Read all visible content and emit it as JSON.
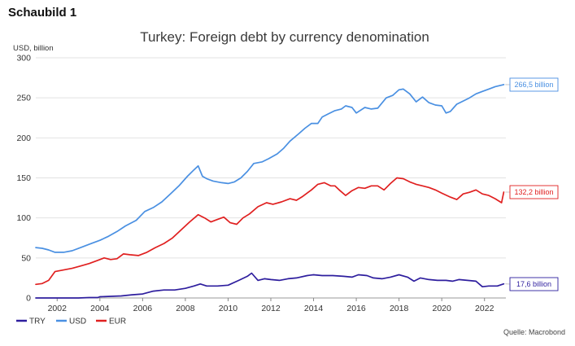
{
  "heading": "Schaubild 1",
  "source": "Quelle: Macrobond",
  "chart_data": {
    "type": "line",
    "title": "Turkey: Foreign debt by currency denomination",
    "ylabel": "USD, billion",
    "xlabel": "",
    "ylim": [
      0,
      300
    ],
    "xlim": [
      2001.0,
      2023.0
    ],
    "yticks": [
      "0",
      "50",
      "100",
      "150",
      "200",
      "250",
      "300"
    ],
    "xticks": [
      "2002",
      "2004",
      "2006",
      "2008",
      "2010",
      "2012",
      "2014",
      "2016",
      "2018",
      "2020",
      "2022"
    ],
    "grid": true,
    "legend": "bottom-left",
    "series": [
      {
        "name": "TRY",
        "color": "#2e1e9e",
        "end_label": "17,6 billion",
        "x": [
          2001.0,
          2001.5,
          2002.0,
          2002.5,
          2003.0,
          2003.5,
          2003.9,
          2004.0,
          2004.5,
          2005.0,
          2005.5,
          2006.0,
          2006.5,
          2007.0,
          2007.5,
          2008.0,
          2008.4,
          2008.7,
          2009.0,
          2009.5,
          2010.0,
          2010.5,
          2010.9,
          2011.1,
          2011.4,
          2011.7,
          2012.0,
          2012.4,
          2012.8,
          2013.2,
          2013.7,
          2014.0,
          2014.4,
          2014.9,
          2015.4,
          2015.8,
          2016.1,
          2016.5,
          2016.8,
          2017.2,
          2017.6,
          2018.0,
          2018.4,
          2018.7,
          2019.0,
          2019.4,
          2019.8,
          2020.2,
          2020.5,
          2020.8,
          2021.2,
          2021.6,
          2021.9,
          2022.2,
          2022.6,
          2022.9
        ],
        "values": [
          0,
          0,
          0,
          0,
          0,
          0.5,
          0.5,
          1.5,
          2,
          2.5,
          4,
          5,
          8.5,
          10,
          10,
          12,
          15,
          17.5,
          15,
          15,
          16,
          22,
          27,
          31,
          22,
          24,
          23,
          22,
          24,
          25,
          28,
          29,
          28,
          28,
          27,
          26,
          29,
          28,
          25,
          24,
          26,
          29,
          26,
          21,
          25,
          23,
          22,
          22,
          21,
          23,
          22,
          21,
          14,
          15,
          15,
          17.6
        ]
      },
      {
        "name": "USD",
        "color": "#4a90e2",
        "end_label": "266,5 billion",
        "x": [
          2001.0,
          2001.3,
          2001.6,
          2001.9,
          2002.3,
          2002.7,
          2003.1,
          2003.6,
          2004.0,
          2004.4,
          2004.8,
          2005.2,
          2005.7,
          2006.1,
          2006.5,
          2006.9,
          2007.3,
          2007.7,
          2008.1,
          2008.4,
          2008.6,
          2008.8,
          2009.0,
          2009.3,
          2009.7,
          2010.0,
          2010.3,
          2010.6,
          2010.9,
          2011.2,
          2011.6,
          2011.9,
          2012.3,
          2012.6,
          2012.9,
          2013.3,
          2013.6,
          2013.9,
          2014.2,
          2014.4,
          2014.7,
          2015.0,
          2015.3,
          2015.5,
          2015.8,
          2016.0,
          2016.4,
          2016.7,
          2017.0,
          2017.4,
          2017.7,
          2018.0,
          2018.2,
          2018.5,
          2018.8,
          2019.1,
          2019.4,
          2019.7,
          2020.0,
          2020.2,
          2020.4,
          2020.7,
          2021.0,
          2021.3,
          2021.6,
          2021.9,
          2022.2,
          2022.5,
          2022.9
        ],
        "values": [
          63,
          62,
          60,
          57,
          57,
          59,
          63,
          68,
          72,
          77,
          83,
          90,
          97,
          108,
          113,
          120,
          130,
          140,
          152,
          160,
          165,
          152,
          149,
          146,
          144,
          143,
          145,
          150,
          158,
          168,
          170,
          174,
          180,
          187,
          196,
          205,
          212,
          218,
          218,
          226,
          230,
          234,
          236,
          240,
          238,
          231,
          238,
          236,
          237,
          250,
          253,
          260,
          261,
          255,
          245,
          251,
          244,
          241,
          240,
          231,
          233,
          242,
          246,
          250,
          255,
          258,
          261,
          264,
          266.5
        ]
      },
      {
        "name": "EUR",
        "color": "#e02020",
        "end_label": "132,2 billion",
        "x": [
          2001.0,
          2001.3,
          2001.6,
          2001.9,
          2002.3,
          2002.7,
          2003.1,
          2003.5,
          2003.9,
          2004.2,
          2004.5,
          2004.8,
          2005.1,
          2005.4,
          2005.8,
          2006.2,
          2006.6,
          2007.0,
          2007.4,
          2007.8,
          2008.2,
          2008.6,
          2008.9,
          2009.2,
          2009.5,
          2009.8,
          2010.1,
          2010.4,
          2010.7,
          2011.0,
          2011.4,
          2011.8,
          2012.1,
          2012.5,
          2012.9,
          2013.2,
          2013.5,
          2013.9,
          2014.2,
          2014.5,
          2014.8,
          2015.0,
          2015.2,
          2015.5,
          2015.8,
          2016.1,
          2016.4,
          2016.7,
          2017.0,
          2017.3,
          2017.6,
          2017.9,
          2018.2,
          2018.5,
          2018.8,
          2019.1,
          2019.4,
          2019.7,
          2020.0,
          2020.4,
          2020.7,
          2021.0,
          2021.3,
          2021.6,
          2021.9,
          2022.2,
          2022.5,
          2022.8,
          2022.9
        ],
        "values": [
          17,
          18,
          22,
          33,
          35,
          37,
          40,
          43,
          47,
          50,
          48,
          49,
          55,
          54,
          53,
          57,
          63,
          68,
          75,
          85,
          95,
          104,
          100,
          95,
          98,
          101,
          94,
          92,
          100,
          105,
          114,
          119,
          117,
          120,
          124,
          122,
          127,
          135,
          142,
          144,
          140,
          140,
          135,
          128,
          134,
          138,
          137,
          140,
          140,
          135,
          143,
          150,
          149,
          145,
          142,
          140,
          138,
          135,
          131,
          126,
          123,
          130,
          132,
          135,
          130,
          128,
          124,
          119,
          132.2
        ]
      }
    ]
  }
}
